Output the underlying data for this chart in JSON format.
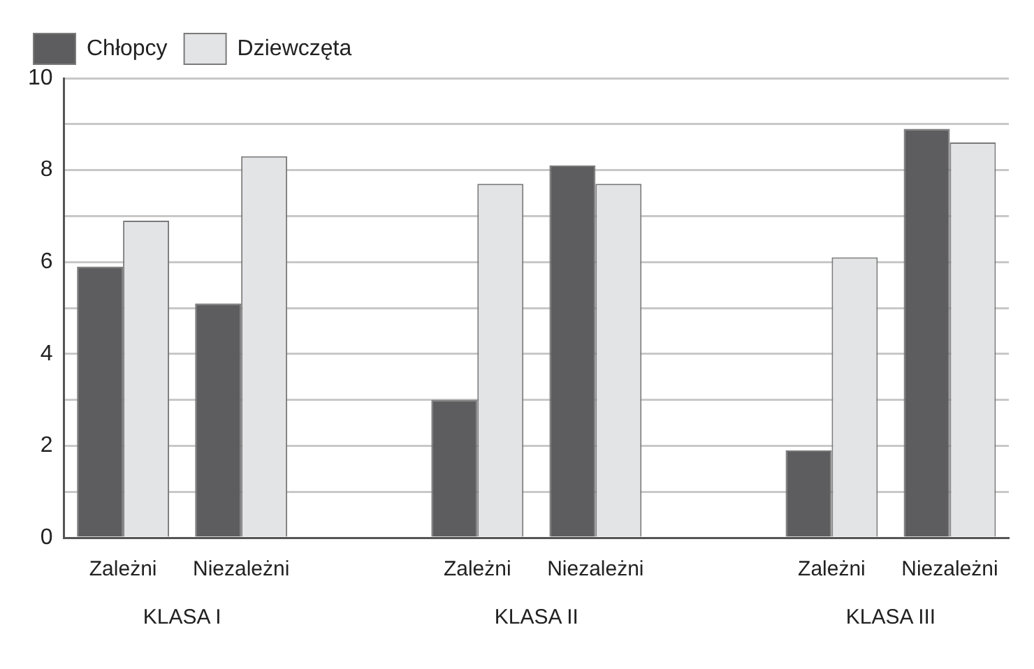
{
  "chart_data": {
    "type": "bar",
    "categories": [
      "Zależni",
      "Niezależni",
      null,
      "Zależni",
      "Niezależni",
      null,
      "Zależni",
      "Niezależni"
    ],
    "series": [
      {
        "name": "Chłopcy",
        "color": "#5d5d5f",
        "values": [
          5.9,
          5.1,
          null,
          3.0,
          8.1,
          null,
          1.9,
          8.9
        ]
      },
      {
        "name": "Dziewczęta",
        "color": "#e3e4e6",
        "values": [
          6.9,
          8.3,
          null,
          7.7,
          7.7,
          null,
          6.1,
          8.6
        ]
      }
    ],
    "ylim": [
      0,
      10
    ],
    "yticks": [
      0,
      {
        "value": 1,
        "label": null
      },
      2,
      {
        "value": 3,
        "label": null
      },
      4,
      {
        "value": 5,
        "label": null
      },
      6,
      {
        "value": 7,
        "label": null
      },
      8,
      {
        "value": 9,
        "label": null
      },
      10
    ],
    "grid": "y",
    "legend": "top left",
    "annotations": [
      "KLASA I",
      "KLASA II",
      "KLASA III"
    ]
  }
}
